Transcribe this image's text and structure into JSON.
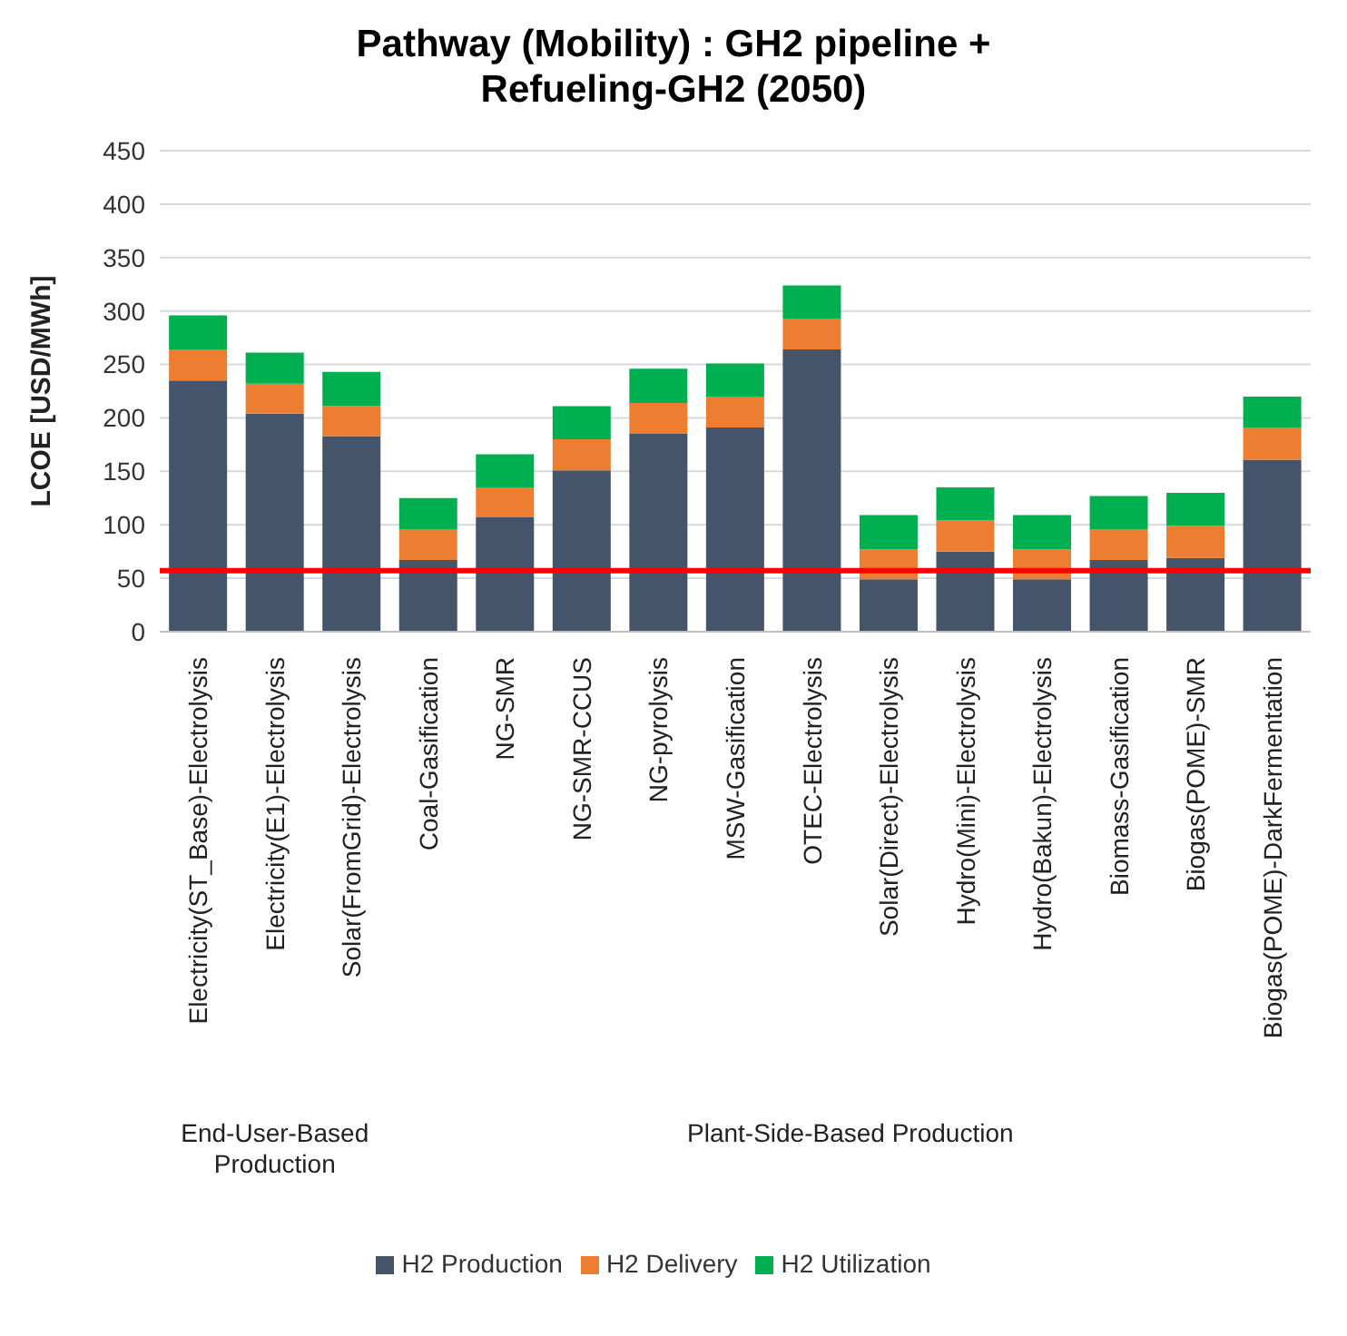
{
  "chart_data": {
    "type": "bar",
    "title": "Pathway (Mobility) : GH2 pipeline + Refueling-GH2 (2050)",
    "ylabel": "LCOE [USD/MWh]",
    "categories": [
      "Electricity(ST_Base)-Electrolysis",
      "Electricity(E1)-Electrolysis",
      "Solar(FromGrid)-Electrolysis",
      "Coal-Gasification",
      "NG-SMR",
      "NG-SMR-CCUS",
      "NG-pyrolysis",
      "MSW-Gasification",
      "OTEC-Electrolysis",
      "Solar(Direct)-Electrolysis",
      "Hydro(Mini)-Electrolysis",
      "Hydro(Bakun)-Electrolysis",
      "Biomass-Gasification",
      "Biogas(POME)-SMR",
      "Biogas(POME)-DarkFermentation"
    ],
    "series": [
      {
        "name": "H2 Production",
        "color": "#44546a",
        "values": [
          235,
          204,
          183,
          67,
          107,
          151,
          185,
          191,
          264,
          49,
          75,
          49,
          67,
          69,
          161
        ]
      },
      {
        "name": "H2 Delivery",
        "color": "#ed7d31",
        "values": [
          29,
          28,
          28,
          29,
          28,
          29,
          29,
          29,
          29,
          28,
          29,
          28,
          29,
          30,
          30
        ]
      },
      {
        "name": "H2 Utilization",
        "color": "#00b050",
        "values": [
          32,
          29,
          32,
          29,
          31,
          31,
          32,
          31,
          31,
          32,
          31,
          32,
          31,
          31,
          29
        ]
      }
    ],
    "stacked": true,
    "ylim": [
      0,
      450
    ],
    "yticks": [
      0,
      50,
      100,
      150,
      200,
      250,
      300,
      350,
      400,
      450
    ],
    "grid": "y",
    "legend": "bottom",
    "ref_lines": [
      {
        "axis": "y",
        "value": 57,
        "color": "#ff0000"
      }
    ],
    "annotations": [
      "End-User-Based Production",
      "Plant-Side-Based Production"
    ]
  }
}
